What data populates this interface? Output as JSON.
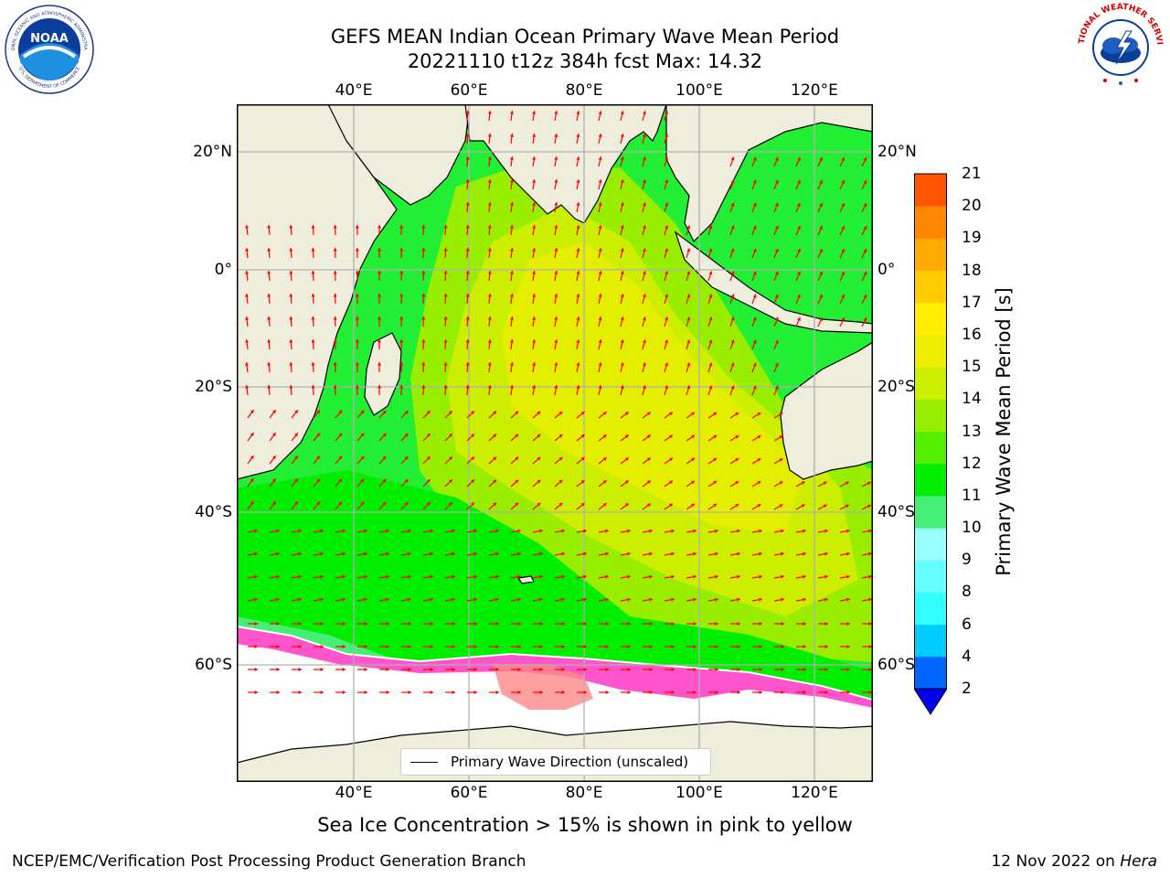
{
  "title": {
    "line1": "GEFS MEAN Indian Ocean Primary Wave Mean Period",
    "line2": "20221110 t12z 384h fcst   Max: 14.32"
  },
  "map": {
    "lon_ticks": [
      "40°E",
      "60°E",
      "80°E",
      "100°E",
      "120°E"
    ],
    "lat_ticks": [
      "20°N",
      "0°",
      "20°S",
      "40°S",
      "60°S"
    ],
    "extent": {
      "lon_min": 20,
      "lon_max": 130,
      "lat_min": -70,
      "lat_max": 27
    }
  },
  "colorbar": {
    "label": "Primary Wave Mean Period [s]",
    "levels": [
      "2",
      "4",
      "6",
      "8",
      "9",
      "10",
      "11",
      "12",
      "13",
      "14",
      "15",
      "16",
      "17",
      "18",
      "19",
      "20",
      "21"
    ],
    "colors": [
      "#0066ff",
      "#00ccff",
      "#33ffff",
      "#66ffff",
      "#99ffff",
      "#44ee77",
      "#00ee00",
      "#55ee00",
      "#99ee00",
      "#ccee00",
      "#eeee00",
      "#ffee00",
      "#ffcc00",
      "#ffaa00",
      "#ff8800",
      "#ff5500",
      "#ff2200",
      "#ff0000"
    ],
    "extend_low_color": "#0000ee"
  },
  "legend": {
    "label": "Primary Wave Direction (unscaled)"
  },
  "caption": "Sea Ice Concentration > 15% is shown in pink to yellow",
  "footer": {
    "left": "NCEP/EMC/Verification Post Processing Product Generation Branch",
    "right_date": "12 Nov 2022 on ",
    "right_machine": "Hera"
  },
  "logos": {
    "noaa_text": "NOAA",
    "noaa_ring_top": "NATIONAL OCEANIC AND ATMOSPHERIC ADMINISTRATION",
    "noaa_ring_bottom": "U.S. DEPARTMENT OF COMMERCE",
    "nws_ring": "NATIONAL WEATHER SERVICE"
  },
  "colors": {
    "land": "#efeedd",
    "arrow": "#ff0000",
    "grid": "#b0b0b0",
    "ice": "#ff55cc"
  }
}
